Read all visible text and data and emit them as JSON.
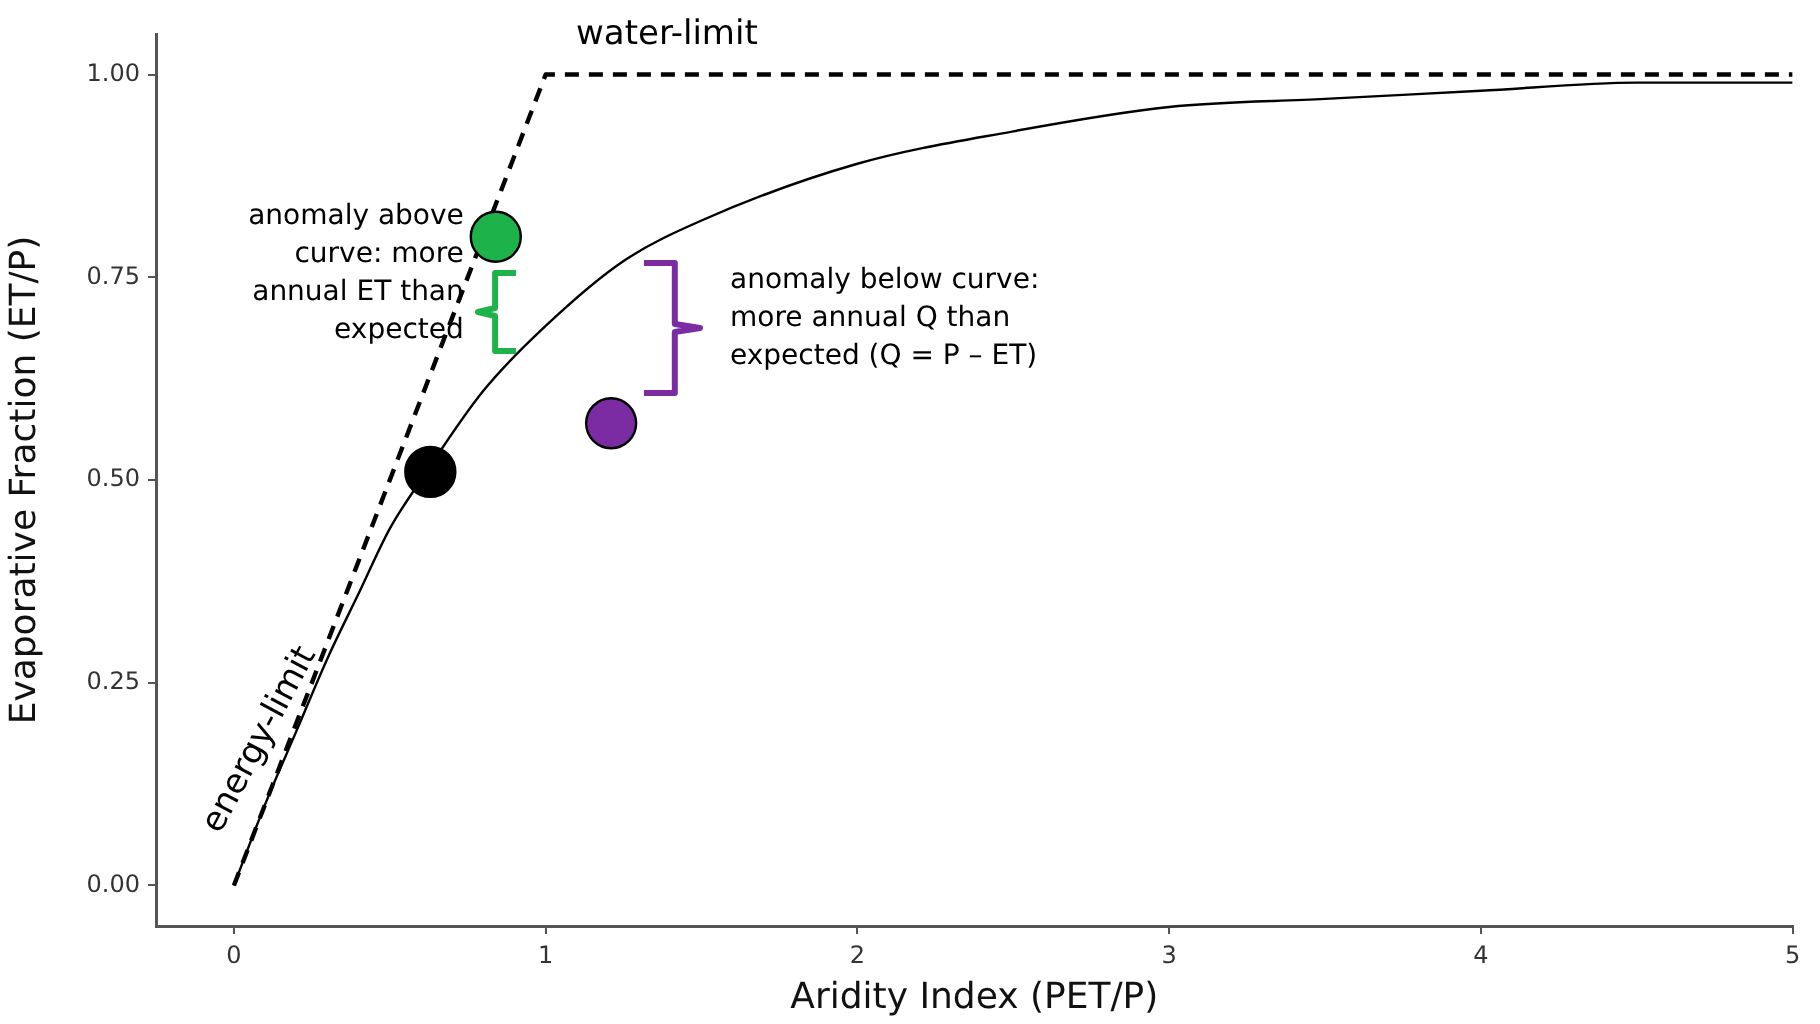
{
  "chart_data": {
    "type": "scatter",
    "xlabel": "Aridity Index (PET/P)",
    "ylabel": "Evaporative Fraction (ET/P)",
    "xlim": [
      -0.25,
      5
    ],
    "ylim": [
      -0.05,
      1.05
    ],
    "xticks": [
      0,
      1,
      2,
      3,
      4,
      5
    ],
    "yticks": [
      {
        "value": 0,
        "label": "0.00"
      },
      {
        "value": 0.25,
        "label": "0.25"
      },
      {
        "value": 0.5,
        "label": "0.50"
      },
      {
        "value": 0.75,
        "label": "0.75"
      },
      {
        "value": 1,
        "label": "1.00"
      }
    ],
    "grid": false,
    "legend": false,
    "marker": "circle",
    "series": [
      {
        "type": "line",
        "color": "#000000",
        "marker": "none",
        "line_style": "solid",
        "x": [
          0,
          0.1,
          0.2,
          0.3,
          0.4,
          0.5,
          0.6,
          0.8,
          1,
          1.25,
          1.5,
          2,
          2.5,
          3,
          3.5,
          4,
          4.5,
          5
        ],
        "values": [
          0,
          0.1,
          0.19,
          0.28,
          0.36,
          0.44,
          0.5,
          0.61,
          0.69,
          0.77,
          0.82,
          0.89,
          0.93,
          0.96,
          0.97,
          0.98,
          0.99,
          0.99
        ]
      },
      {
        "type": "line",
        "color": "#000000",
        "marker": "none",
        "line_style": "dashed",
        "x": [
          0,
          1,
          5
        ],
        "values": [
          0,
          1,
          1
        ]
      },
      {
        "color": "#000000",
        "x": [
          0.63
        ],
        "values": [
          0.51
        ]
      },
      {
        "color": "#1db34a",
        "x": [
          0.84
        ],
        "values": [
          0.8
        ]
      },
      {
        "color": "#7b2ca3",
        "x": [
          1.21
        ],
        "values": [
          0.57
        ]
      }
    ],
    "annotations": [
      "water-limit",
      "energy-limit",
      {
        "text": "anomaly above curve: more annual ET than expected",
        "x": 0.84,
        "y": 0.8
      },
      "anomaly below curve: more annual Q than expected (Q = P – ET)"
    ]
  }
}
